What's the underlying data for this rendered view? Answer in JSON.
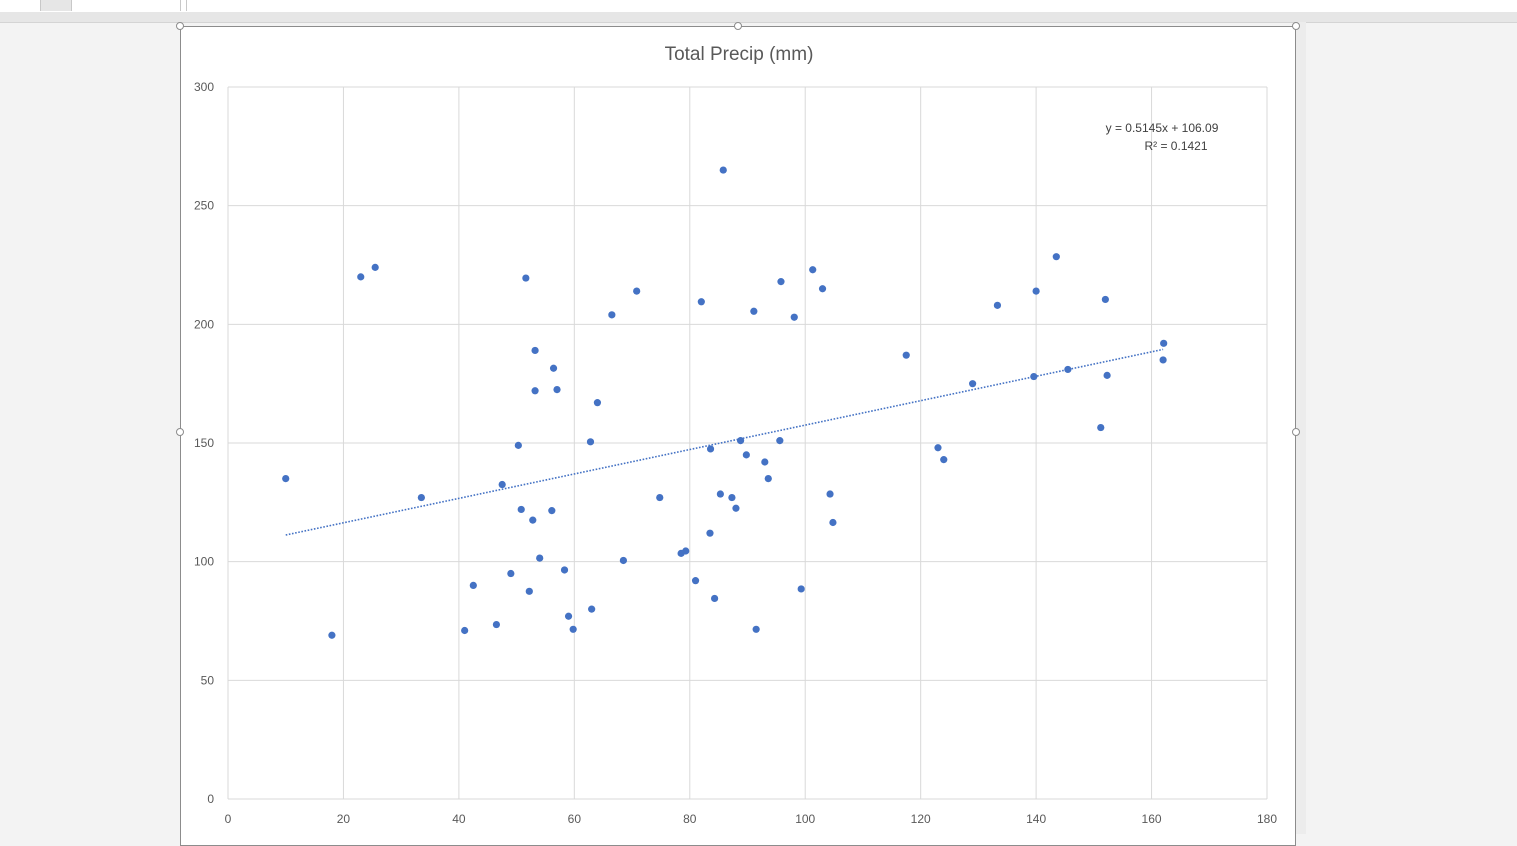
{
  "chart_data": {
    "type": "scatter",
    "title": "Total Precip (mm)",
    "xlabel": "",
    "ylabel": "",
    "xlim": [
      0,
      180
    ],
    "ylim": [
      0,
      300
    ],
    "x_ticks": [
      0,
      20,
      40,
      60,
      80,
      100,
      120,
      140,
      160,
      180
    ],
    "y_ticks": [
      0,
      50,
      100,
      150,
      200,
      250,
      300
    ],
    "grid": true,
    "legend": "none",
    "marker_color": "#4472c4",
    "trendline": {
      "type": "linear",
      "style": "dotted",
      "slope": 0.5145,
      "intercept": 106.09,
      "x_range": [
        10,
        162
      ],
      "equation": "y = 0.5145x + 106.09",
      "r_squared": "R² = 0.1421"
    },
    "points": [
      {
        "x": 10,
        "y": 135
      },
      {
        "x": 18,
        "y": 69
      },
      {
        "x": 23,
        "y": 220
      },
      {
        "x": 25.5,
        "y": 224
      },
      {
        "x": 33.5,
        "y": 127
      },
      {
        "x": 41,
        "y": 71
      },
      {
        "x": 42.5,
        "y": 90
      },
      {
        "x": 46.5,
        "y": 73.5
      },
      {
        "x": 47.5,
        "y": 132.5
      },
      {
        "x": 49,
        "y": 95
      },
      {
        "x": 50.3,
        "y": 149
      },
      {
        "x": 50.8,
        "y": 122
      },
      {
        "x": 51.6,
        "y": 219.5
      },
      {
        "x": 52.2,
        "y": 87.5
      },
      {
        "x": 52.8,
        "y": 117.5
      },
      {
        "x": 53.2,
        "y": 189
      },
      {
        "x": 53.2,
        "y": 172
      },
      {
        "x": 54,
        "y": 101.5
      },
      {
        "x": 56.1,
        "y": 121.5
      },
      {
        "x": 56.4,
        "y": 181.5
      },
      {
        "x": 57,
        "y": 172.5
      },
      {
        "x": 58.3,
        "y": 96.5
      },
      {
        "x": 59,
        "y": 77
      },
      {
        "x": 59.8,
        "y": 71.5
      },
      {
        "x": 62.8,
        "y": 150.5
      },
      {
        "x": 63,
        "y": 80
      },
      {
        "x": 64,
        "y": 167
      },
      {
        "x": 66.5,
        "y": 204
      },
      {
        "x": 68.5,
        "y": 100.5
      },
      {
        "x": 70.8,
        "y": 214
      },
      {
        "x": 74.8,
        "y": 127
      },
      {
        "x": 78.5,
        "y": 103.5
      },
      {
        "x": 79.3,
        "y": 104.5
      },
      {
        "x": 81,
        "y": 92
      },
      {
        "x": 82,
        "y": 209.5
      },
      {
        "x": 83.5,
        "y": 112
      },
      {
        "x": 83.6,
        "y": 147.5
      },
      {
        "x": 84.3,
        "y": 84.5
      },
      {
        "x": 85.3,
        "y": 128.5
      },
      {
        "x": 85.8,
        "y": 265
      },
      {
        "x": 87.3,
        "y": 127
      },
      {
        "x": 88,
        "y": 122.5
      },
      {
        "x": 88.8,
        "y": 151
      },
      {
        "x": 89.8,
        "y": 145
      },
      {
        "x": 91.1,
        "y": 205.5
      },
      {
        "x": 91.5,
        "y": 71.5
      },
      {
        "x": 93,
        "y": 142
      },
      {
        "x": 93.6,
        "y": 135
      },
      {
        "x": 95.6,
        "y": 151
      },
      {
        "x": 95.8,
        "y": 218
      },
      {
        "x": 98.1,
        "y": 203
      },
      {
        "x": 99.3,
        "y": 88.5
      },
      {
        "x": 101.3,
        "y": 223
      },
      {
        "x": 103,
        "y": 215
      },
      {
        "x": 104.3,
        "y": 128.5
      },
      {
        "x": 104.8,
        "y": 116.5
      },
      {
        "x": 117.5,
        "y": 187
      },
      {
        "x": 123,
        "y": 148
      },
      {
        "x": 124,
        "y": 143
      },
      {
        "x": 129,
        "y": 175
      },
      {
        "x": 133.3,
        "y": 208
      },
      {
        "x": 139.6,
        "y": 178
      },
      {
        "x": 140,
        "y": 214
      },
      {
        "x": 143.5,
        "y": 228.5
      },
      {
        "x": 145.5,
        "y": 181
      },
      {
        "x": 151.2,
        "y": 156.5
      },
      {
        "x": 152,
        "y": 210.5
      },
      {
        "x": 152.3,
        "y": 178.5
      },
      {
        "x": 162,
        "y": 185
      },
      {
        "x": 162.1,
        "y": 192
      }
    ]
  }
}
